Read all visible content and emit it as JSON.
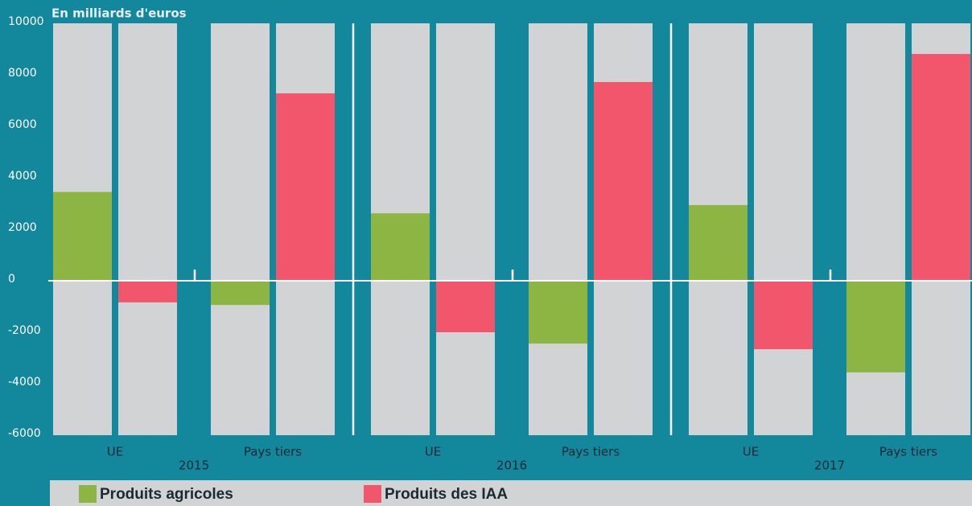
{
  "chart_data": {
    "type": "bar",
    "title": "En milliards d'euros",
    "categories": [
      "UE",
      "Pays tiers",
      "UE",
      "Pays tiers",
      "UE",
      "Pays tiers"
    ],
    "groups": [
      "2015",
      "2016",
      "2017"
    ],
    "series": [
      {
        "name": "Produits agricoles",
        "color": "#8db543",
        "values": [
          3450,
          -940,
          2620,
          -2440,
          2940,
          -3560
        ]
      },
      {
        "name": "Produits des IAA",
        "color": "#f2566d",
        "values": [
          -840,
          7280,
          -2000,
          7720,
          -2660,
          8810
        ]
      }
    ],
    "ylim": [
      -6000,
      10000
    ],
    "yticks": [
      -6000,
      -4000,
      -2000,
      0,
      2000,
      4000,
      6000,
      8000,
      10000
    ],
    "grid": false
  }
}
